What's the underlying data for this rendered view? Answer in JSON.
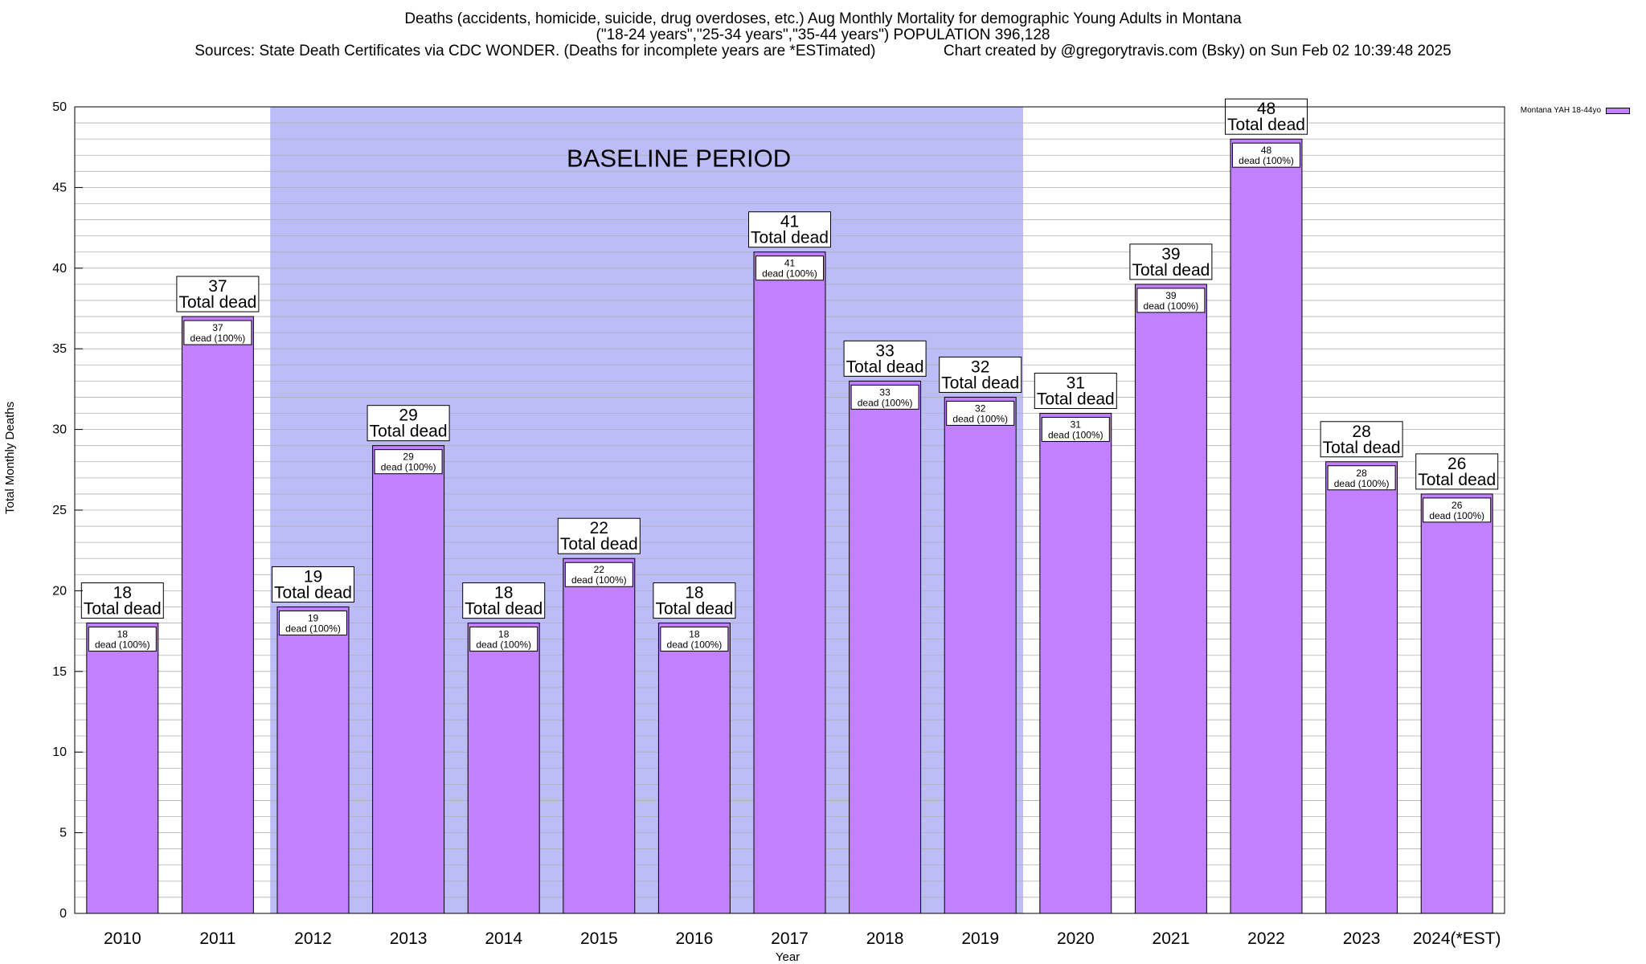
{
  "title": {
    "line1": "Deaths (accidents, homicide, suicide, drug overdoses, etc.) Aug Monthly Mortality for demographic Young Adults in Montana",
    "line2": "(\"18-24 years\",\"25-34 years\",\"35-44 years\") POPULATION 396,128",
    "line3_left": "Sources: State Death Certificates via CDC WONDER. (Deaths for incomplete years are *ESTimated)",
    "line3_right": "Chart created by @gregorytravis.com (Bsky) on Sun Feb 02 10:39:48 2025"
  },
  "legend": {
    "label": "Montana YAH 18-44yo",
    "position": "top-right"
  },
  "colors": {
    "bar": "#c080ff",
    "baseline": "#bcbcf8",
    "grid": "#b0b0b0"
  },
  "chart_data": {
    "type": "bar",
    "categories": [
      "2010",
      "2011",
      "2012",
      "2013",
      "2014",
      "2015",
      "2016",
      "2017",
      "2018",
      "2019",
      "2020",
      "2021",
      "2022",
      "2023",
      "2024(*EST)"
    ],
    "series": [
      {
        "name": "Montana YAH 18-44yo",
        "values": [
          18,
          37,
          19,
          29,
          18,
          22,
          18,
          41,
          33,
          32,
          31,
          39,
          48,
          28,
          26
        ]
      }
    ],
    "data_labels": {
      "top_suffix": "Total dead",
      "inner_suffix": "dead (100%)"
    },
    "annotation": {
      "text": "BASELINE PERIOD",
      "from_category": "2012",
      "to_category": "2019"
    },
    "xlabel": "Year",
    "ylabel": "Total Monthly Deaths",
    "ylim": [
      0,
      50
    ],
    "yticks": [
      0,
      5,
      10,
      15,
      20,
      25,
      30,
      35,
      40,
      45,
      50
    ],
    "grid": true
  }
}
